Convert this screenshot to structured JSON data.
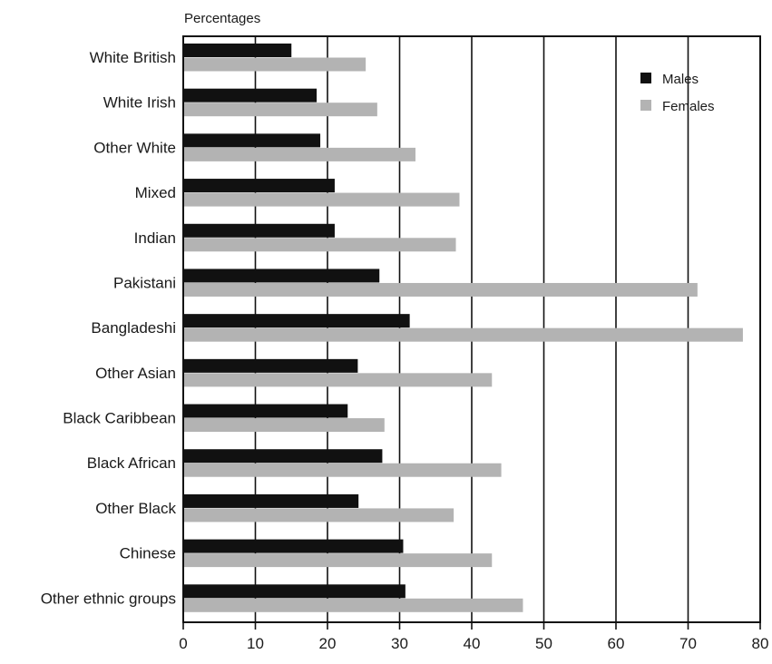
{
  "chart_data": {
    "type": "bar",
    "orientation": "horizontal",
    "ylabel": "Percentages",
    "categories": [
      "White British",
      "White Irish",
      "Other White",
      "Mixed",
      "Indian",
      "Pakistani",
      "Bangladeshi",
      "Other Asian",
      "Black Caribbean",
      "Black African",
      "Other Black",
      "Chinese",
      "Other ethnic groups"
    ],
    "series": [
      {
        "name": "Males",
        "color": "#111111",
        "values": [
          15,
          18.5,
          19,
          21,
          21,
          27.2,
          31.4,
          24.2,
          22.8,
          27.6,
          24.3,
          30.5,
          30.8
        ]
      },
      {
        "name": "Females",
        "color": "#b3b3b3",
        "values": [
          25.3,
          26.9,
          32.2,
          38.3,
          37.8,
          71.3,
          77.6,
          42.8,
          27.9,
          44.1,
          37.5,
          42.8,
          47.1
        ]
      }
    ],
    "xlim": [
      0,
      80
    ],
    "xticks": [
      "0",
      "10",
      "20",
      "30",
      "40",
      "50",
      "60",
      "70",
      "80"
    ],
    "grid": "vertical",
    "legend_position": "top-right"
  }
}
